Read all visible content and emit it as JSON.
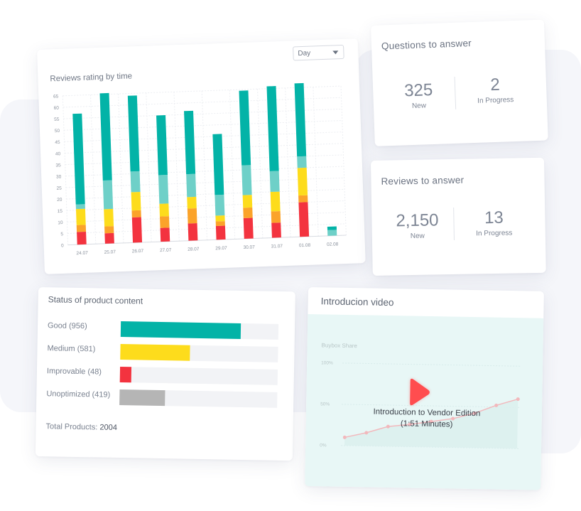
{
  "chart_data": {
    "type": "bar",
    "title": "Reviews rating by time",
    "categories": [
      "24.07",
      "25.07",
      "26.07",
      "27.07",
      "28.07",
      "29.07",
      "30.07",
      "31.07",
      "01.08",
      "02.08"
    ],
    "series": [
      {
        "color": "#f3333f",
        "values": [
          5.5,
          4.5,
          11,
          6,
          7.5,
          6,
          9,
          6.5,
          15,
          0
        ]
      },
      {
        "color": "#fba32a",
        "values": [
          3,
          3,
          3,
          5,
          6.5,
          2,
          4.5,
          5,
          3,
          0
        ]
      },
      {
        "color": "#fddc1c",
        "values": [
          7,
          7.5,
          8,
          5.5,
          5,
          2.5,
          5.5,
          8.5,
          12,
          0
        ]
      },
      {
        "color": "#6ed0c8",
        "values": [
          2,
          12.5,
          9,
          12.5,
          10,
          9,
          13,
          9,
          5,
          2.5
        ]
      },
      {
        "color": "#03b3a7",
        "values": [
          39.5,
          38,
          33,
          26,
          27.5,
          26.5,
          32.5,
          37,
          35,
          1.5
        ]
      }
    ],
    "ylim": [
      0,
      65
    ],
    "yticks": [
      0,
      5,
      10,
      15,
      20,
      25,
      30,
      35,
      40,
      45,
      50,
      55,
      60,
      65
    ],
    "grid": true,
    "legend": "none"
  },
  "chart_card": {
    "select_value": "Day"
  },
  "questions_card": {
    "title": "Questions to answer",
    "new_value": "325",
    "new_label": "New",
    "progress_value": "2",
    "progress_label": "In Progress"
  },
  "reviews_card": {
    "title": "Reviews to answer",
    "new_value": "2,150",
    "new_label": "New",
    "progress_value": "13",
    "progress_label": "In Progress"
  },
  "status_card": {
    "title": "Status of product content",
    "total_label": "Total Products:",
    "total_value": "2004",
    "rows": [
      {
        "name": "Good",
        "count": "(956)",
        "fraction": 0.76,
        "color": "#03b3a7"
      },
      {
        "name": "Medium",
        "count": "(581)",
        "fraction": 0.44,
        "color": "#fddc1c"
      },
      {
        "name": "Improvable",
        "count": "(48)",
        "fraction": 0.07,
        "color": "#f3333f"
      },
      {
        "name": "Unoptimized",
        "count": "(419)",
        "fraction": 0.29,
        "color": "#b5b5b5"
      }
    ]
  },
  "video_card": {
    "title": "Introducion video",
    "caption_title": "Introduction to Vendor Edition",
    "caption_duration": "(1:51 Minutes)",
    "preview_chart_title": "Buybox Share",
    "preview_ticks": [
      "100%",
      "50%",
      "0%"
    ],
    "preview_values": [
      10,
      16,
      24,
      27,
      31,
      35,
      42,
      52,
      60
    ],
    "accent": "#ff4d4f"
  }
}
